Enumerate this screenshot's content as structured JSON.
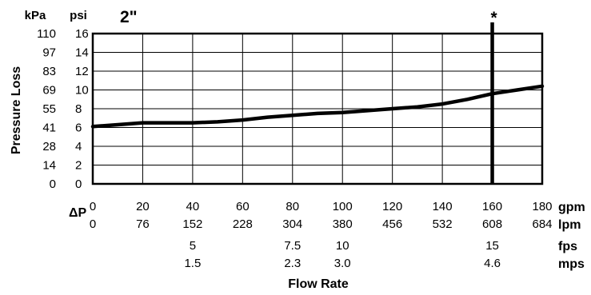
{
  "chart_data": {
    "type": "line",
    "title": "2\"",
    "xlabel": "Flow Rate",
    "ylabel": "Pressure Loss",
    "xlim": [
      0,
      180
    ],
    "ylim": [
      0,
      16
    ],
    "delta_label": "ΔP",
    "y_unit_labels": [
      "kPa",
      "psi"
    ],
    "y_ticks_psi": [
      "16",
      "14",
      "12",
      "10",
      "8",
      "6",
      "4",
      "2",
      "0"
    ],
    "y_ticks_kpa": [
      "110",
      "97",
      "83",
      "69",
      "55",
      "41",
      "28",
      "14",
      "0"
    ],
    "x_gpm_ticks": [
      "0",
      "20",
      "40",
      "60",
      "80",
      "100",
      "120",
      "140",
      "160",
      "180"
    ],
    "x_lpm_ticks": [
      "0",
      "76",
      "152",
      "228",
      "304",
      "380",
      "456",
      "532",
      "608",
      "684"
    ],
    "x_fps_ticks": [
      {
        "gpm": 40,
        "label": "5"
      },
      {
        "gpm": 80,
        "label": "7.5"
      },
      {
        "gpm": 100,
        "label": "10"
      },
      {
        "gpm": 160,
        "label": "15"
      }
    ],
    "x_mps_ticks": [
      {
        "gpm": 40,
        "label": "1.5"
      },
      {
        "gpm": 80,
        "label": "2.3"
      },
      {
        "gpm": 100,
        "label": "3.0"
      },
      {
        "gpm": 160,
        "label": "4.6"
      }
    ],
    "x_unit_labels": [
      "gpm",
      "lpm",
      "fps",
      "mps"
    ],
    "series": [
      {
        "x": [
          0,
          10,
          20,
          30,
          40,
          50,
          60,
          70,
          80,
          90,
          100,
          110,
          120,
          130,
          140,
          150,
          160,
          170,
          180
        ],
        "y": [
          6.1,
          6.3,
          6.5,
          6.5,
          6.5,
          6.6,
          6.8,
          7.1,
          7.3,
          7.5,
          7.6,
          7.8,
          8.0,
          8.2,
          8.5,
          9.0,
          9.6,
          10.0,
          10.4
        ]
      }
    ],
    "marker": {
      "x": 160,
      "label": "*"
    },
    "grid": true
  }
}
